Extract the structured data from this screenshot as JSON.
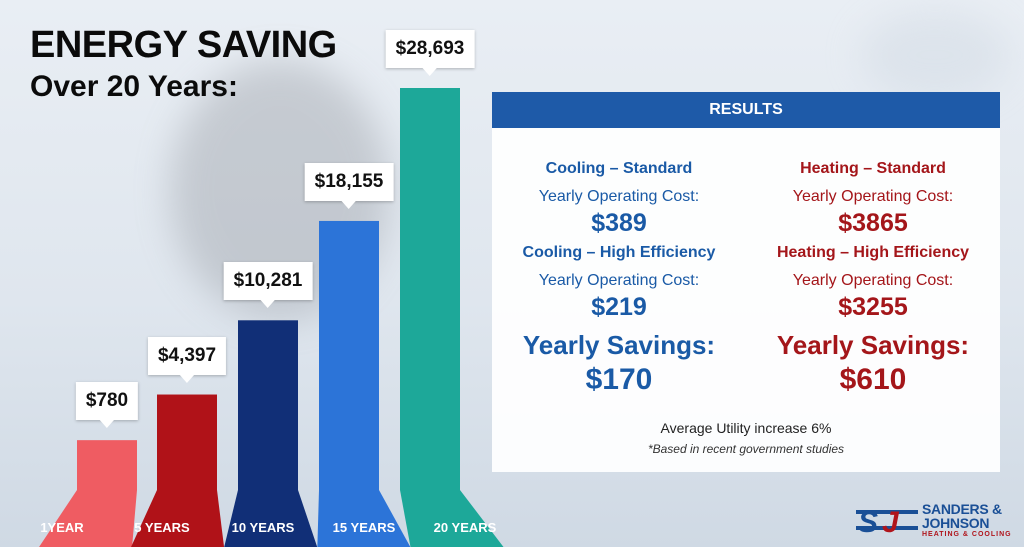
{
  "headline": {
    "line1": "ENERGY SAVING",
    "line2": "Over 20 Years:"
  },
  "chart_data": {
    "type": "bar",
    "categories": [
      "1YEAR",
      "5 YEARS",
      "10 YEARS",
      "15 YEARS",
      "20 YEARS"
    ],
    "values": [
      780,
      4397,
      10281,
      18155,
      28693
    ],
    "value_labels": [
      "$780",
      "$4,397",
      "$10,281",
      "$18,155",
      "$28,693"
    ],
    "colors": [
      "#ef5c62",
      "#b01218",
      "#112f77",
      "#2c74d8",
      "#1da899"
    ],
    "title": "ENERGY SAVING Over 20 Years:",
    "xlabel": "",
    "ylabel": ""
  },
  "results": {
    "header": "RESULTS",
    "cooling": {
      "standard_title": "Cooling – Standard",
      "standard_label": "Yearly Operating Cost:",
      "standard_cost": "$389",
      "high_title": "Cooling – High Efficiency",
      "high_label": "Yearly Operating Cost:",
      "high_cost": "$219",
      "savings_label": "Yearly Savings:",
      "savings": "$170"
    },
    "heating": {
      "standard_title": "Heating – Standard",
      "standard_label": "Yearly Operating Cost:",
      "standard_cost": "$3865",
      "high_title": "Heating – High Efficiency",
      "high_label": "Yearly Operating Cost:",
      "high_cost": "$3255",
      "savings_label": "Yearly Savings:",
      "savings": "$610"
    },
    "footnote": "Average Utility increase 6%",
    "source_note": "*Based in recent government studies"
  },
  "brand": {
    "name_line1": "SANDERS &",
    "name_line2": "JOHNSON",
    "tagline": "HEATING & COOLING",
    "mark": "SJ",
    "primary_color": "#1a4f96",
    "accent_color": "#b0141b"
  }
}
